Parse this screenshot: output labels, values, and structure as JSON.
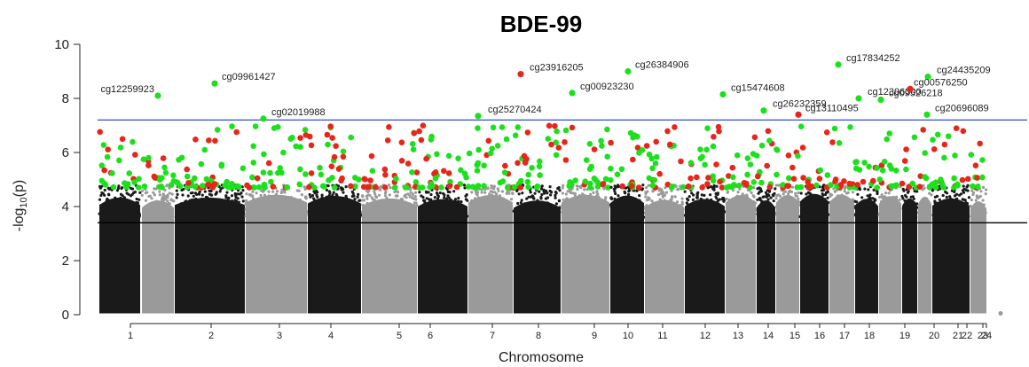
{
  "chart_data": {
    "type": "scatter",
    "title": "BDE-99",
    "xlabel": "Chromosome",
    "ylabel": "-log10(p)",
    "ylim": [
      0,
      10
    ],
    "y_ticks": [
      0,
      2,
      4,
      6,
      8,
      10
    ],
    "legend": false,
    "grid": false,
    "thresholds": [
      {
        "name": "significance",
        "value": 7.2,
        "color": "#3050d0"
      },
      {
        "name": "suggestive",
        "value": 3.4,
        "color": "#000000"
      }
    ],
    "colors": {
      "chr_odd": "#1a1a1a",
      "chr_even": "#9a9a9a",
      "hit_green": "#1de01d",
      "hit_red": "#e8251a"
    },
    "chromosomes": [
      "1",
      "2",
      "3",
      "4",
      "5",
      "6",
      "7",
      "8",
      "9",
      "10",
      "11",
      "12",
      "13",
      "14",
      "15",
      "16",
      "17",
      "18",
      "19",
      "20",
      "21",
      "22",
      "23",
      "24"
    ],
    "annotated_cpgs": [
      {
        "label": "cg09961427",
        "chr": "2",
        "y": 8.55,
        "color": "green"
      },
      {
        "label": "cg12259923",
        "chr": "1",
        "y": 8.1,
        "color": "green"
      },
      {
        "label": "cg02019988",
        "chr": "3",
        "y": 7.25,
        "color": "green"
      },
      {
        "label": "cg23916205",
        "chr": "8",
        "y": 8.9,
        "color": "red"
      },
      {
        "label": "cg26384906",
        "chr": "10",
        "y": 9.0,
        "color": "green"
      },
      {
        "label": "cg00923230",
        "chr": "9",
        "y": 8.2,
        "color": "green"
      },
      {
        "label": "cg25270424",
        "chr": "7",
        "y": 7.35,
        "color": "green"
      },
      {
        "label": "cg15474608",
        "chr": "13",
        "y": 8.15,
        "color": "green"
      },
      {
        "label": "cg17834252",
        "chr": "16",
        "y": 9.25,
        "color": "green"
      },
      {
        "label": "cg26232359",
        "chr": "15",
        "y": 7.55,
        "color": "green"
      },
      {
        "label": "cg13110495",
        "chr": "15",
        "y": 7.4,
        "color": "red"
      },
      {
        "label": "cg12306300",
        "chr": "18",
        "y": 8.0,
        "color": "green"
      },
      {
        "label": "cg09526218",
        "chr": "19",
        "y": 7.95,
        "color": "green"
      },
      {
        "label": "cg24435209",
        "chr": "22",
        "y": 8.8,
        "color": "green"
      },
      {
        "label": "cg00576250",
        "chr": "21",
        "y": 8.35,
        "color": "red"
      },
      {
        "label": "cg20696089",
        "chr": "22",
        "y": 7.4,
        "color": "green"
      }
    ]
  }
}
